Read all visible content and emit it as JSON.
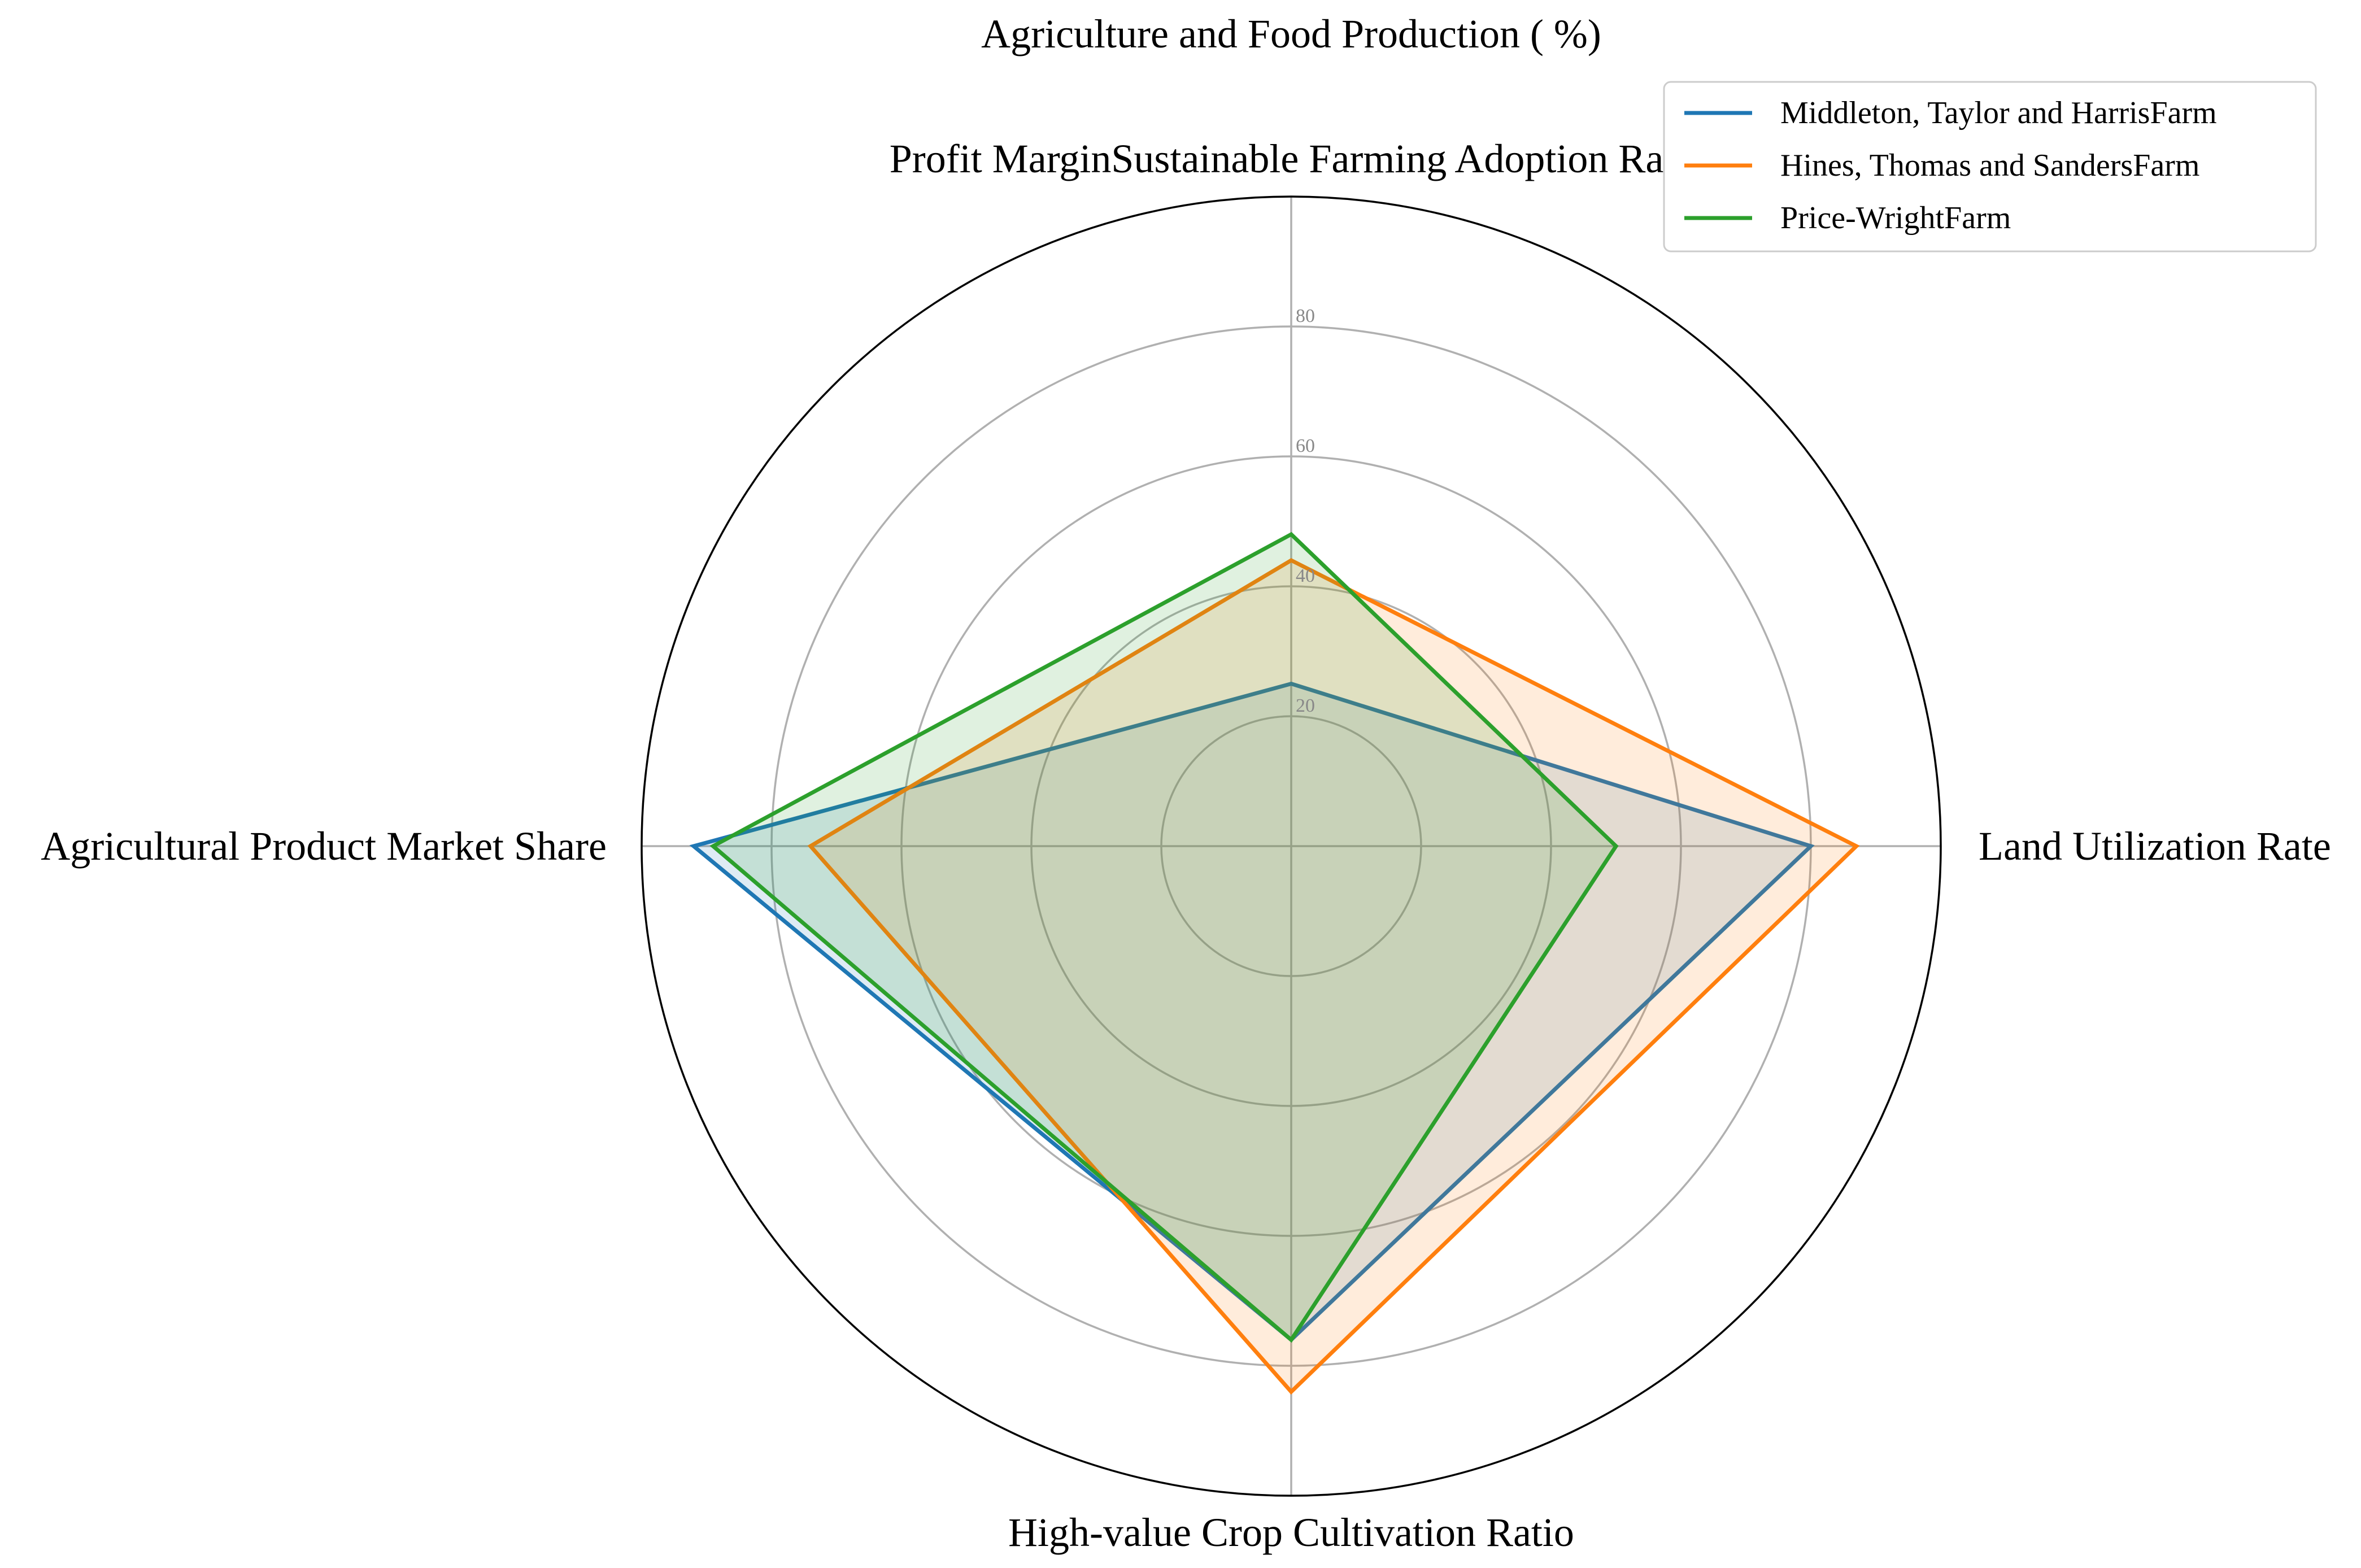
{
  "chart_data": {
    "type": "radar",
    "title": "Agriculture and Food Production ( %)",
    "axes": [
      "Profit MarginSustainable Farming Adoption Rate",
      "Land Utilization Rate",
      "High-value Crop Cultivation Ratio",
      "Agricultural Product Market Share"
    ],
    "rlim": [
      0,
      100
    ],
    "rticks": [
      20,
      40,
      60,
      80
    ],
    "rtick_labels": [
      "20",
      "40",
      "60",
      "80"
    ],
    "grid": true,
    "legend_position": "top-right",
    "series": [
      {
        "name": "Middleton, Taylor and HarrisFarm",
        "color": "#1f77b4",
        "values": [
          25,
          80,
          76,
          92
        ]
      },
      {
        "name": "Hines, Thomas and SandersFarm",
        "color": "#ff7f0e",
        "values": [
          44,
          87,
          84,
          74
        ]
      },
      {
        "name": "Price-WrightFarm",
        "color": "#2ca02c",
        "values": [
          48,
          50,
          76,
          89
        ]
      }
    ]
  }
}
